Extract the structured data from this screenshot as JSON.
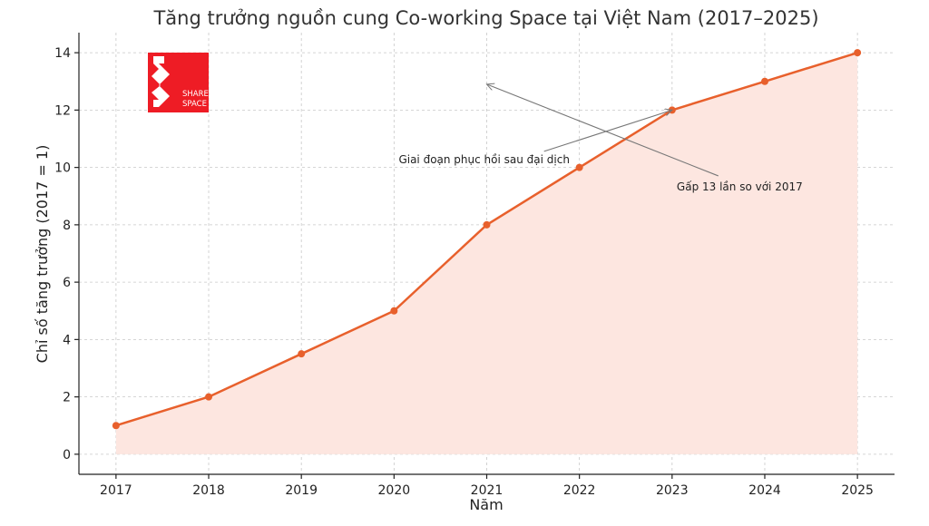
{
  "chart_data": {
    "type": "area",
    "title": "Tăng trưởng nguồn cung Co-working Space tại Việt Nam (2017–2025)",
    "xlabel": "Năm",
    "ylabel": "Chỉ số tăng trưởng (2017 = 1)",
    "x": [
      2017,
      2018,
      2019,
      2020,
      2021,
      2022,
      2023,
      2024,
      2025
    ],
    "values": [
      1,
      2,
      3.5,
      5,
      8,
      10,
      12,
      13,
      14
    ],
    "ylim": [
      -0.7,
      14.7
    ],
    "xlim": [
      2016.6,
      2025.4
    ],
    "yticks": [
      0,
      2,
      4,
      6,
      8,
      10,
      12,
      14
    ],
    "grid": true,
    "colors": {
      "line": "#e8602c",
      "fill": "#fde6e0",
      "logo": "#ee1c25"
    },
    "annotations": [
      {
        "text": "Giai đoạn phục hồi sau đại dịch",
        "text_x": 2020.05,
        "text_y": 10.15,
        "arrow_to_x": 2023,
        "arrow_to_y": 12
      },
      {
        "text": "Gấp 13 lần so với 2017",
        "text_x": 2023.05,
        "text_y": 9.2,
        "arrow_to_x": 2021,
        "arrow_to_y": 12.9
      }
    ]
  },
  "logo": {
    "line1": "SHARE",
    "line2": "SPACE",
    "icon": "sharespace-logo-icon"
  }
}
